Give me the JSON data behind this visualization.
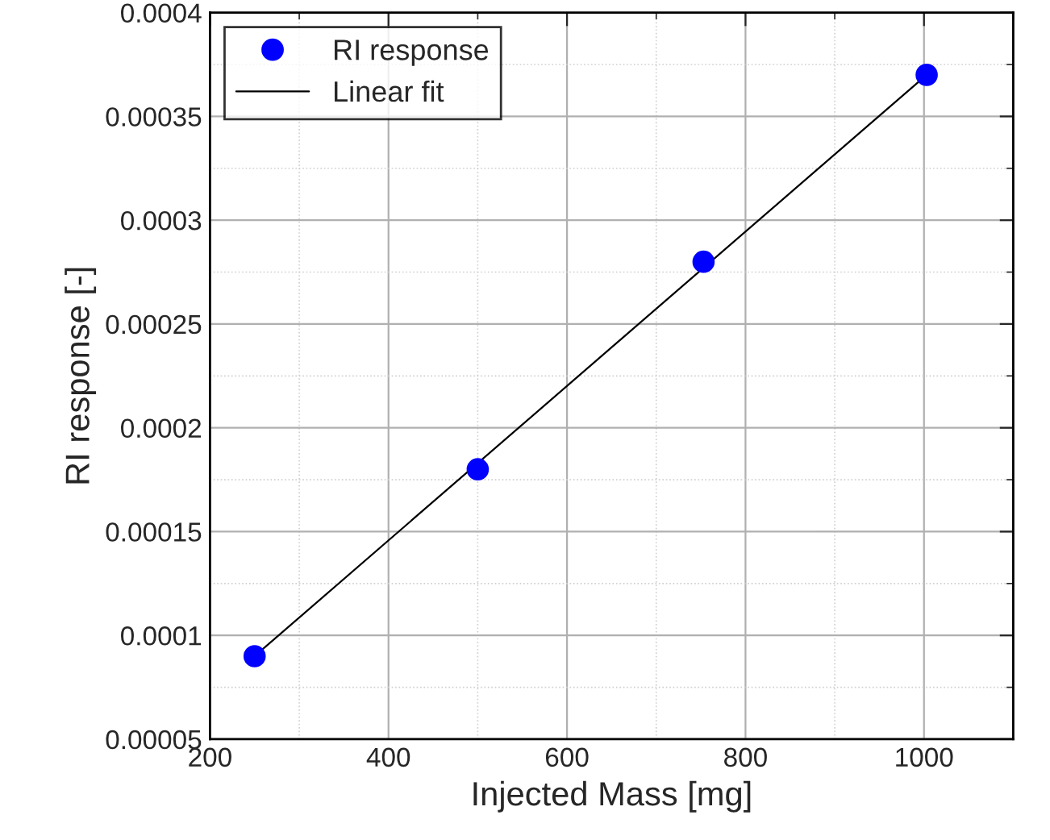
{
  "chart_data": {
    "type": "scatter",
    "xlabel": "Injected Mass [mg]",
    "ylabel": "RI response [-]",
    "series": [
      {
        "name": "RI response",
        "color": "#0000ff",
        "x": [
          250,
          500,
          753,
          1003
        ],
        "values": [
          9e-05,
          0.00018,
          0.00028,
          0.00037
        ],
        "marker": "circle"
      },
      {
        "name": "Linear fit",
        "type": "line",
        "color": "#000000",
        "x": [
          250,
          1003
        ],
        "values": [
          9e-05,
          0.00037
        ],
        "marker": "none",
        "line_style": "solid"
      }
    ],
    "xlim": [
      200,
      1100
    ],
    "xticks": [
      200,
      400,
      600,
      800,
      1000
    ],
    "ylim": [
      5e-05,
      0.0004
    ],
    "yticks": [
      {
        "value": 5e-05,
        "label": "0.00005"
      },
      {
        "value": 0.0001,
        "label": "0.0001"
      },
      {
        "value": 0.00015,
        "label": "0.00015"
      },
      {
        "value": 0.0002,
        "label": "0.0002"
      },
      {
        "value": 0.00025,
        "label": "0.00025"
      },
      {
        "value": 0.0003,
        "label": "0.0003"
      },
      {
        "value": 0.00035,
        "label": "0.00035"
      },
      {
        "value": 0.0004,
        "label": "0.0004"
      }
    ],
    "grid": true,
    "legend": "top left"
  }
}
